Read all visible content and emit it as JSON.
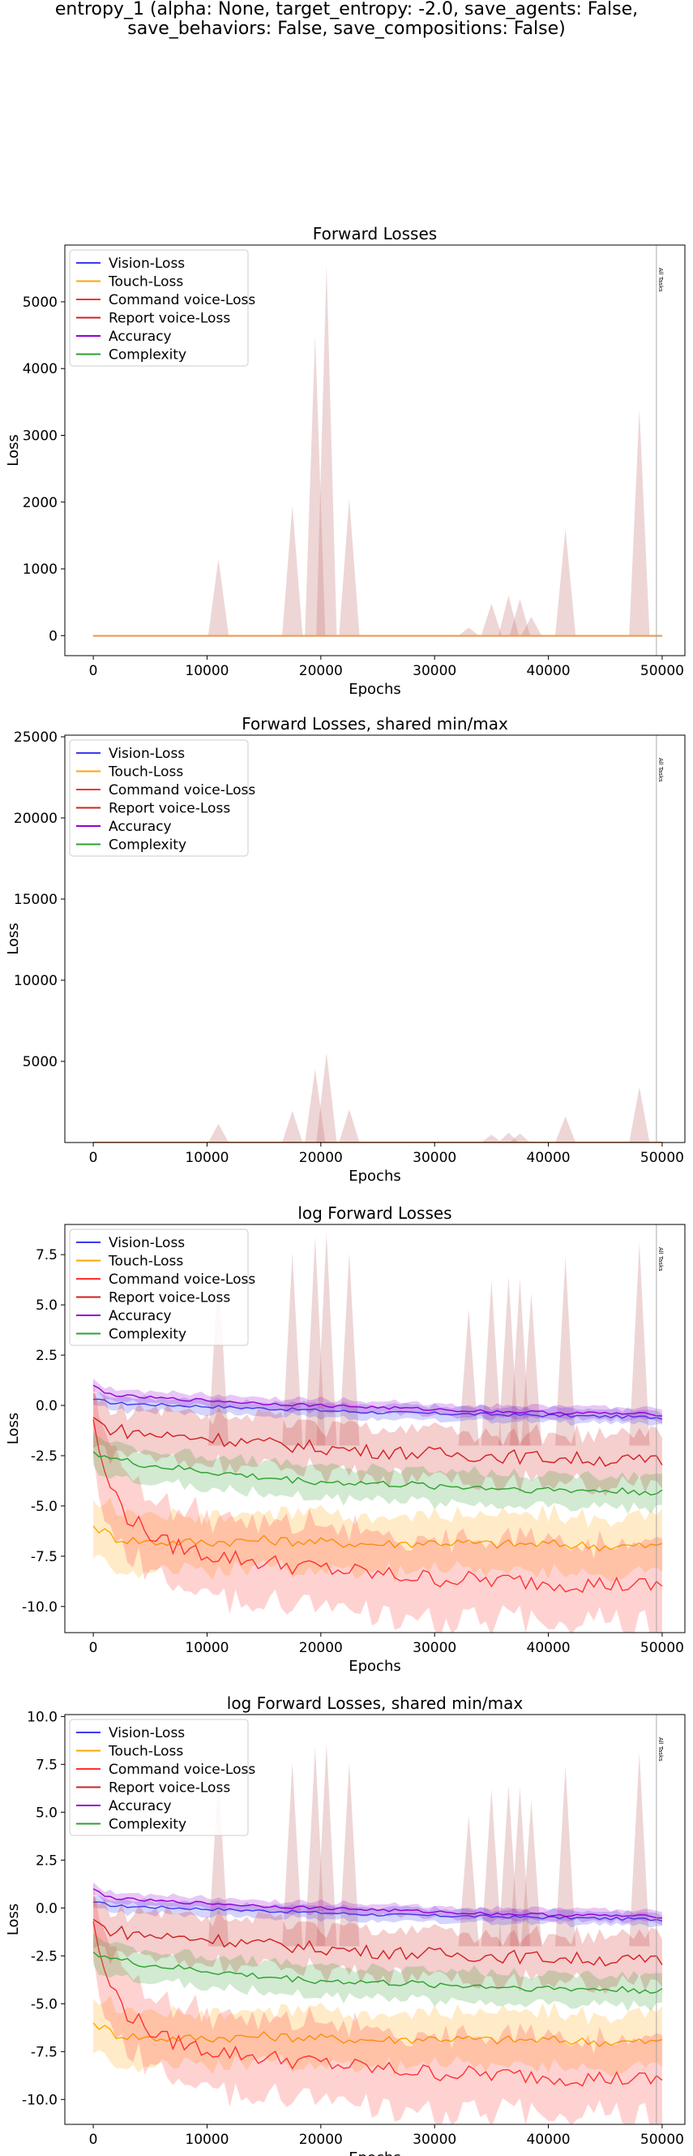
{
  "figure": {
    "suptitle_line1": "entropy_1 (alpha: None, target_entropy: -2.0, save_agents: False,",
    "suptitle_line2": "save_behaviors: False, save_compositions: False)"
  },
  "colors": {
    "vision": "#3b3bf0",
    "touch": "#ffa500",
    "command": "#ff3030",
    "report": "#d02020",
    "accuracy": "#9400d3",
    "complexity": "#2ca02c",
    "band_spike": "#c77878"
  },
  "chart_data": [
    {
      "type": "line",
      "title": "Forward Losses",
      "xlabel": "Epochs",
      "ylabel": "Loss",
      "xlim": [
        -2500,
        52000
      ],
      "ylim": [
        -300,
        5850
      ],
      "xticks": [
        0,
        10000,
        20000,
        30000,
        40000,
        50000
      ],
      "yticks": [
        0,
        1000,
        2000,
        3000,
        4000,
        5000
      ],
      "legend": [
        "Vision-Loss",
        "Touch-Loss",
        "Command voice-Loss",
        "Report voice-Loss",
        "Accuracy",
        "Complexity"
      ],
      "legend_position": "upper left",
      "annotation": {
        "x": 49500,
        "text": "All Tasks"
      },
      "log": false,
      "spikes": [
        {
          "x": 11000,
          "y": 1150
        },
        {
          "x": 17500,
          "y": 1950
        },
        {
          "x": 19500,
          "y": 4500
        },
        {
          "x": 20500,
          "y": 5550
        },
        {
          "x": 22500,
          "y": 2050
        },
        {
          "x": 33000,
          "y": 120
        },
        {
          "x": 35000,
          "y": 480
        },
        {
          "x": 36500,
          "y": 600
        },
        {
          "x": 37500,
          "y": 550
        },
        {
          "x": 38500,
          "y": 280
        },
        {
          "x": 41500,
          "y": 1600
        },
        {
          "x": 48000,
          "y": 3400
        }
      ]
    },
    {
      "type": "line",
      "title": "Forward Losses, shared min/max",
      "xlabel": "Epochs",
      "ylabel": "Loss",
      "xlim": [
        -2500,
        52000
      ],
      "ylim": [
        0,
        25100
      ],
      "xticks": [
        0,
        10000,
        20000,
        30000,
        40000,
        50000
      ],
      "yticks": [
        5000,
        10000,
        15000,
        20000,
        25000
      ],
      "legend": [
        "Vision-Loss",
        "Touch-Loss",
        "Command voice-Loss",
        "Report voice-Loss",
        "Accuracy",
        "Complexity"
      ],
      "legend_position": "upper left",
      "annotation": {
        "x": 49500,
        "text": "All Tasks"
      },
      "log": false,
      "spikes": [
        {
          "x": 11000,
          "y": 1150
        },
        {
          "x": 17500,
          "y": 1950
        },
        {
          "x": 19500,
          "y": 4500
        },
        {
          "x": 20500,
          "y": 5550
        },
        {
          "x": 22500,
          "y": 2050
        },
        {
          "x": 35000,
          "y": 480
        },
        {
          "x": 36500,
          "y": 600
        },
        {
          "x": 37500,
          "y": 550
        },
        {
          "x": 41500,
          "y": 1600
        },
        {
          "x": 48000,
          "y": 3400
        }
      ]
    },
    {
      "type": "line",
      "title": "log Forward Losses",
      "xlabel": "Epochs",
      "ylabel": "Loss",
      "xlim": [
        -2500,
        52000
      ],
      "ylim": [
        -11.3,
        9.0
      ],
      "xticks": [
        0,
        10000,
        20000,
        30000,
        40000,
        50000
      ],
      "yticks": [
        -10.0,
        -7.5,
        -5.0,
        -2.5,
        0.0,
        2.5,
        5.0,
        7.5
      ],
      "legend": [
        "Vision-Loss",
        "Touch-Loss",
        "Command voice-Loss",
        "Report voice-Loss",
        "Accuracy",
        "Complexity"
      ],
      "legend_position": "upper left",
      "annotation": {
        "x": 49500,
        "text": "All Tasks"
      },
      "log": true,
      "spikes": [
        {
          "x": 11000,
          "y": 7.0
        },
        {
          "x": 17500,
          "y": 7.6
        },
        {
          "x": 19500,
          "y": 8.4
        },
        {
          "x": 20500,
          "y": 8.6
        },
        {
          "x": 22500,
          "y": 7.6
        },
        {
          "x": 33000,
          "y": 4.8
        },
        {
          "x": 35000,
          "y": 6.2
        },
        {
          "x": 36500,
          "y": 6.4
        },
        {
          "x": 37500,
          "y": 6.3
        },
        {
          "x": 38500,
          "y": 5.6
        },
        {
          "x": 41500,
          "y": 7.4
        },
        {
          "x": 48000,
          "y": 8.1
        }
      ],
      "series": [
        {
          "name": "Vision-Loss",
          "x": [
            0,
            2000,
            5000,
            10000,
            15000,
            20000,
            25000,
            30000,
            35000,
            40000,
            45000,
            50000
          ],
          "y": [
            0.3,
            0.1,
            0.05,
            -0.05,
            -0.15,
            -0.25,
            -0.35,
            -0.4,
            -0.45,
            -0.5,
            -0.55,
            -0.6
          ]
        },
        {
          "name": "Touch-Loss",
          "x": [
            0,
            2000,
            5000,
            10000,
            15000,
            20000,
            25000,
            30000,
            35000,
            40000,
            45000,
            50000
          ],
          "y": [
            -6.0,
            -6.6,
            -6.8,
            -6.8,
            -6.7,
            -6.8,
            -6.9,
            -6.8,
            -6.9,
            -6.9,
            -7.0,
            -7.0
          ]
        },
        {
          "name": "Command voice-Loss",
          "x": [
            0,
            1000,
            3000,
            6000,
            10000,
            15000,
            20000,
            25000,
            30000,
            35000,
            40000,
            45000,
            50000
          ],
          "y": [
            -0.7,
            -3.5,
            -5.5,
            -6.8,
            -7.4,
            -7.8,
            -8.1,
            -8.4,
            -8.6,
            -8.7,
            -8.8,
            -8.9,
            -9.0
          ]
        },
        {
          "name": "Report voice-Loss",
          "x": [
            0,
            1000,
            3000,
            6000,
            10000,
            15000,
            20000,
            25000,
            30000,
            35000,
            40000,
            45000,
            50000
          ],
          "y": [
            -0.6,
            -1.1,
            -1.3,
            -1.5,
            -1.6,
            -1.9,
            -2.1,
            -2.3,
            -2.4,
            -2.5,
            -2.6,
            -2.7,
            -2.8
          ]
        },
        {
          "name": "Accuracy",
          "x": [
            0,
            1000,
            3000,
            6000,
            10000,
            15000,
            20000,
            25000,
            30000,
            35000,
            40000,
            45000,
            50000
          ],
          "y": [
            1.0,
            0.6,
            0.45,
            0.35,
            0.25,
            0.1,
            0.0,
            -0.1,
            -0.2,
            -0.3,
            -0.35,
            -0.4,
            -0.45
          ]
        },
        {
          "name": "Complexity",
          "x": [
            0,
            2000,
            5000,
            10000,
            15000,
            20000,
            25000,
            30000,
            35000,
            40000,
            45000,
            50000
          ],
          "y": [
            -2.3,
            -2.7,
            -3.0,
            -3.3,
            -3.6,
            -3.8,
            -3.9,
            -4.0,
            -4.1,
            -4.2,
            -4.25,
            -4.3
          ]
        }
      ]
    },
    {
      "type": "line",
      "title": "log Forward Losses, shared min/max",
      "xlabel": "Epochs",
      "ylabel": "Loss",
      "xlim": [
        -2500,
        52000
      ],
      "ylim": [
        -11.3,
        10.1
      ],
      "xticks": [
        0,
        10000,
        20000,
        30000,
        40000,
        50000
      ],
      "yticks": [
        -10.0,
        -7.5,
        -5.0,
        -2.5,
        0.0,
        2.5,
        5.0,
        7.5,
        10.0
      ],
      "legend": [
        "Vision-Loss",
        "Touch-Loss",
        "Command voice-Loss",
        "Report voice-Loss",
        "Accuracy",
        "Complexity"
      ],
      "legend_position": "upper left",
      "annotation": {
        "x": 49500,
        "text": "All Tasks"
      },
      "log": true,
      "spikes": [
        {
          "x": 11000,
          "y": 7.0
        },
        {
          "x": 17500,
          "y": 7.6
        },
        {
          "x": 19500,
          "y": 8.4
        },
        {
          "x": 20500,
          "y": 8.6
        },
        {
          "x": 22500,
          "y": 7.6
        },
        {
          "x": 33000,
          "y": 4.8
        },
        {
          "x": 35000,
          "y": 6.2
        },
        {
          "x": 36500,
          "y": 6.4
        },
        {
          "x": 37500,
          "y": 6.3
        },
        {
          "x": 38500,
          "y": 5.6
        },
        {
          "x": 41500,
          "y": 7.4
        },
        {
          "x": 48000,
          "y": 8.1
        }
      ],
      "series": [
        {
          "name": "Vision-Loss",
          "x": [
            0,
            2000,
            5000,
            10000,
            15000,
            20000,
            25000,
            30000,
            35000,
            40000,
            45000,
            50000
          ],
          "y": [
            0.3,
            0.1,
            0.05,
            -0.05,
            -0.15,
            -0.25,
            -0.35,
            -0.4,
            -0.45,
            -0.5,
            -0.55,
            -0.6
          ]
        },
        {
          "name": "Touch-Loss",
          "x": [
            0,
            2000,
            5000,
            10000,
            15000,
            20000,
            25000,
            30000,
            35000,
            40000,
            45000,
            50000
          ],
          "y": [
            -6.0,
            -6.6,
            -6.8,
            -6.8,
            -6.7,
            -6.8,
            -6.9,
            -6.8,
            -6.9,
            -6.9,
            -7.0,
            -7.0
          ]
        },
        {
          "name": "Command voice-Loss",
          "x": [
            0,
            1000,
            3000,
            6000,
            10000,
            15000,
            20000,
            25000,
            30000,
            35000,
            40000,
            45000,
            50000
          ],
          "y": [
            -0.7,
            -3.5,
            -5.5,
            -6.8,
            -7.4,
            -7.8,
            -8.1,
            -8.4,
            -8.6,
            -8.7,
            -8.8,
            -8.9,
            -9.0
          ]
        },
        {
          "name": "Report voice-Loss",
          "x": [
            0,
            1000,
            3000,
            6000,
            10000,
            15000,
            20000,
            25000,
            30000,
            35000,
            40000,
            45000,
            50000
          ],
          "y": [
            -0.6,
            -1.1,
            -1.3,
            -1.5,
            -1.6,
            -1.9,
            -2.1,
            -2.3,
            -2.4,
            -2.5,
            -2.6,
            -2.7,
            -2.8
          ]
        },
        {
          "name": "Accuracy",
          "x": [
            0,
            1000,
            3000,
            6000,
            10000,
            15000,
            20000,
            25000,
            30000,
            35000,
            40000,
            45000,
            50000
          ],
          "y": [
            1.0,
            0.6,
            0.45,
            0.35,
            0.25,
            0.1,
            0.0,
            -0.1,
            -0.2,
            -0.3,
            -0.35,
            -0.4,
            -0.45
          ]
        },
        {
          "name": "Complexity",
          "x": [
            0,
            2000,
            5000,
            10000,
            15000,
            20000,
            25000,
            30000,
            35000,
            40000,
            45000,
            50000
          ],
          "y": [
            -2.3,
            -2.7,
            -3.0,
            -3.3,
            -3.6,
            -3.8,
            -3.9,
            -4.0,
            -4.1,
            -4.2,
            -4.25,
            -4.3
          ]
        }
      ]
    }
  ]
}
